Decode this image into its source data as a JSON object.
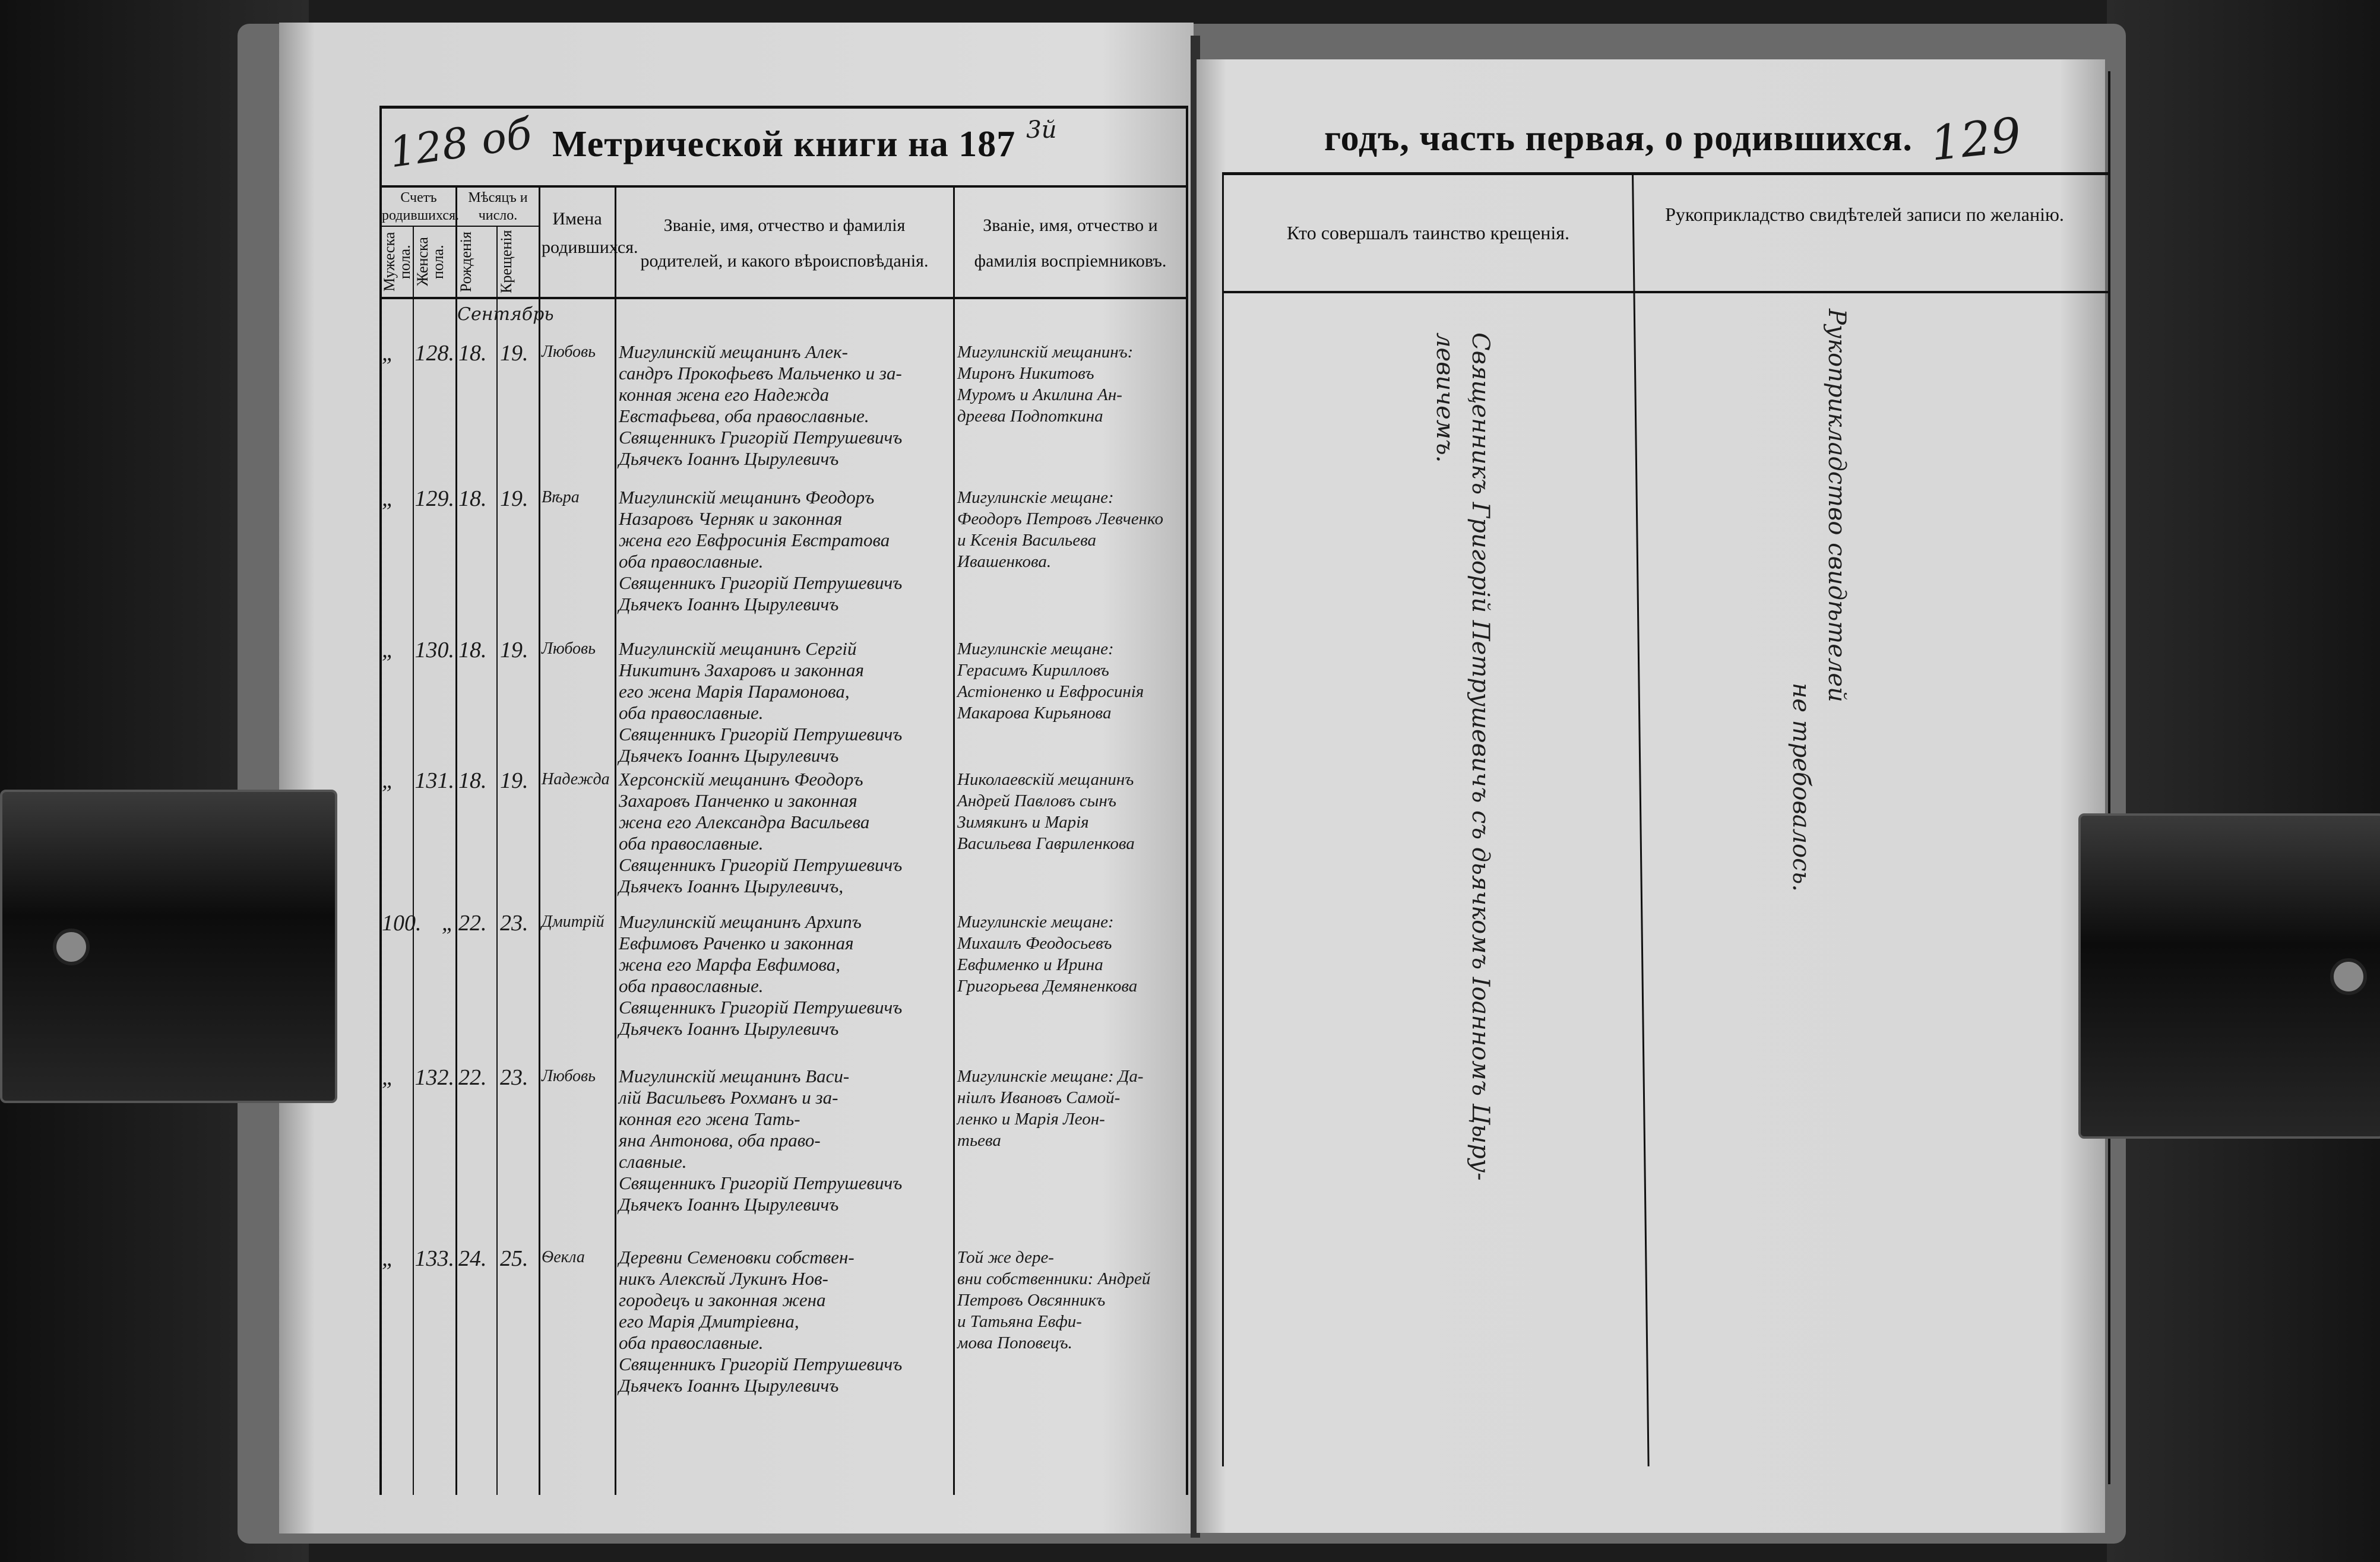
{
  "left_page": {
    "folio": "128 об",
    "title": "Метрической книги на 187",
    "year_handwritten": "3й",
    "headers": {
      "count_group": "Счетъ родившихся.",
      "male": "Мужеска пола.",
      "female": "Женска пола.",
      "month_group": "Мѣсяцъ и число.",
      "birth": "Рожденія",
      "baptism": "Крещенія",
      "names": "Имена родившихся.",
      "parents": "Званіе, имя, отчество и фамилія родителей, и какого вѣроисповѣданія.",
      "godparents": "Званіе, имя, отчество и фамилія воспріемниковъ."
    },
    "month_note": "Сентябрь",
    "rows": [
      {
        "male": "„",
        "female": "128.",
        "birth": "18.",
        "baptism": "19.",
        "name": "Любовь",
        "parents": "Мигулинскій мещанинъ Алек-\nсандръ Прокофьевъ Мальченко и за-\nконная жена его Надежда\nЕвстафьева, оба православные.\nСвященникъ Григорій Петрушевичъ\nДьячекъ Іоаннъ Цырулевичъ",
        "godparents": "Мигулинскій мещанинъ:\nМиронъ Никитовъ\nМуромъ и Акилина Ан-\nдреева Подпоткина"
      },
      {
        "male": "„",
        "female": "129.",
        "birth": "18.",
        "baptism": "19.",
        "name": "Вѣра",
        "parents": "Мигулинскій мещанинъ Феодоръ\nНазаровъ Черняк и законная\nжена его Евфросинія Евстратова\nоба православные.\nСвященникъ Григорій Петрушевичъ\nДьячекъ Іоаннъ Цырулевичъ",
        "godparents": "Мигулинскіе мещане:\nФеодоръ Петровъ Левченко\nи Ксенія Васильева\nИвашенкова."
      },
      {
        "male": "„",
        "female": "130.",
        "birth": "18.",
        "baptism": "19.",
        "name": "Любовь",
        "parents": "Мигулинскій мещанинъ Сергій\nНикитинъ Захаровъ и законная\nего жена Марія Парамонова,\nоба православные.\nСвященникъ Григорій Петрушевичъ\nДьячекъ Іоаннъ Цырулевичъ",
        "godparents": "Мигулинскіе мещане:\nГерасимъ Кирилловъ\nАстіоненко и Евфросинія\nМакарова Кирьянова"
      },
      {
        "male": "„",
        "female": "131.",
        "birth": "18.",
        "baptism": "19.",
        "name": "Надежда",
        "parents": "Херсонскій мещанинъ Феодоръ\nЗахаровъ Панченко и законная\nжена его Александра Васильева\nоба православные.\nСвященникъ Григорій Петрушевичъ\nДьячекъ Іоаннъ Цырулевичъ,",
        "godparents": "Николаевскій мещанинъ\nАндрей Павловъ сынъ\nЗимякинъ и Марія\nВасильева Гавриленкова"
      },
      {
        "male": "100.",
        "female": "„",
        "birth": "22.",
        "baptism": "23.",
        "name": "Дмитрій",
        "parents": "Мигулинскій мещанинъ Архипъ\nЕвфимовъ Раченко и законная\nжена его Марфа Евфимова,\nоба православные.\nСвященникъ Григорій Петрушевичъ\nДьячекъ Іоаннъ Цырулевичъ",
        "godparents": "Мигулинскіе мещане:\nМихаилъ Феодосьевъ\nЕвфименко и Ирина\nГригорьева Демяненкова"
      },
      {
        "male": "„",
        "female": "132.",
        "birth": "22.",
        "baptism": "23.",
        "name": "Любовь",
        "parents": "Мигулинскій мещанинъ Васи-\nлій Васильевъ Рохманъ и за-\nконная его жена Тать-\nяна Антонова, оба право-\nславные.\nСвященникъ Григорій Петрушевичъ\nДьячекъ Іоаннъ Цырулевичъ",
        "godparents": "Мигулинскіе мещане: Да-\nніилъ Ивановъ Самой-\nленко и Марія Леон-\nтьева"
      },
      {
        "male": "„",
        "female": "133.",
        "birth": "24.",
        "baptism": "25.",
        "name": "Ѳекла",
        "parents": "Деревни Семеновки собствен-\nникъ Алексѣй Лукинъ Нов-\nгородецъ и законная жена\nего Марія Дмитріевна,\nоба православные.\nСвященникъ Григорій Петрушевичъ\nДьячекъ Іоаннъ Цырулевичъ",
        "godparents": "Той же дере-\nвни собственники: Андрей\nПетровъ Овсянникъ\nи Татьяна Евфи-\nмова Поповецъ."
      }
    ]
  },
  "right_page": {
    "title": "годъ, часть первая, о родившихся.",
    "folio": "129",
    "headers": {
      "baptizer": "Кто совершалъ таинство крещенія.",
      "witnesses": "Рукоприкладство свидѣтелей записи по желанію."
    },
    "baptizer_text": [
      "Священникъ Григорій Петрушевичъ съ дьячкомъ Іоанномъ Цыру-",
      "левичемъ."
    ],
    "witnesses_text": [
      "Рукоприкладство свидѣтелей",
      "не требовалось."
    ]
  }
}
